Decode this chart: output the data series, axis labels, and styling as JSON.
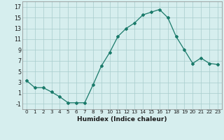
{
  "x": [
    0,
    1,
    2,
    3,
    4,
    5,
    6,
    7,
    8,
    9,
    10,
    11,
    12,
    13,
    14,
    15,
    16,
    17,
    18,
    19,
    20,
    21,
    22,
    23
  ],
  "y": [
    3.3,
    2.0,
    2.0,
    1.2,
    0.3,
    -0.8,
    -0.8,
    -0.8,
    2.5,
    6.0,
    8.5,
    11.5,
    13.0,
    14.0,
    15.5,
    16.0,
    16.5,
    15.0,
    11.5,
    9.0,
    6.5,
    7.5,
    6.5,
    6.3
  ],
  "line_color": "#1a7a6a",
  "marker": "D",
  "marker_size": 2.0,
  "xlabel": "Humidex (Indice chaleur)",
  "bg_color": "#d6eeee",
  "grid_color": "#a8cccc",
  "xlim": [
    -0.5,
    23.5
  ],
  "ylim": [
    -2,
    18
  ],
  "yticks": [
    -1,
    1,
    3,
    5,
    7,
    9,
    11,
    13,
    15,
    17
  ],
  "xtick_labels": [
    "0",
    "1",
    "2",
    "3",
    "4",
    "5",
    "6",
    "7",
    "8",
    "9",
    "10",
    "11",
    "12",
    "13",
    "14",
    "15",
    "16",
    "17",
    "18",
    "19",
    "20",
    "21",
    "22",
    "23"
  ]
}
